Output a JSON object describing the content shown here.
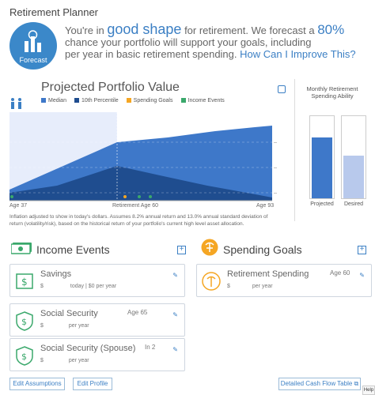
{
  "app": {
    "title": "Retirement Planner"
  },
  "forecast": {
    "badge_label": "Forecast",
    "line_start": "You're in",
    "status": "good shape",
    "line_mid": "for retirement. We forecast a",
    "percent": "80%",
    "line_end": "chance your portfolio will support your goals, including",
    "line_end2": "per year in basic retirement spending.",
    "improve_link": "How Can I Improve This?"
  },
  "chart": {
    "title": "Projected Portfolio Value",
    "legend": [
      {
        "label": "Median",
        "color": "#3e78c9"
      },
      {
        "label": "10th Percentile",
        "color": "#1f4d8f"
      },
      {
        "label": "Spending Goals",
        "color": "#f5a623"
      },
      {
        "label": "Income Events",
        "color": "#3aa86b"
      }
    ],
    "start_age": "Age 37",
    "retirement_age": "Retirement Age 60",
    "end_age": "Age 93",
    "disclaimer": "Inflation adjusted to show in today's dollars. Assumes 8.2% annual return and 13.0% annual standard deviation of return (volatility/risk), based on the historical return of your portfolio's current high level asset allocation."
  },
  "chart_data": {
    "type": "area",
    "title": "Projected Portfolio Value",
    "xlabel": "",
    "ylabel": "",
    "series": [
      {
        "name": "Median"
      },
      {
        "name": "10th Percentile"
      }
    ],
    "x_range": [
      "Age 37",
      "Age 93"
    ],
    "annotations": [
      "Retirement Age 60"
    ]
  },
  "side": {
    "title": "Monthly Retirement Spending Ability",
    "projected_label": "Projected",
    "desired_label": "Desired",
    "projected_level": 0.74,
    "desired_level": 0.52
  },
  "income": {
    "title": "Income Events",
    "items": [
      {
        "name": "Savings",
        "left": "$",
        "sub": "today | $0 per year",
        "right": ""
      },
      {
        "name": "Social Security",
        "left": "$",
        "sub": "per year",
        "right": "Age 65"
      },
      {
        "name": "Social Security (Spouse)",
        "left": "$",
        "sub": "per year",
        "right": "In 2"
      }
    ]
  },
  "spending": {
    "title": "Spending Goals",
    "items": [
      {
        "name": "Retirement Spending",
        "left": "$",
        "sub": "per year",
        "right": "Age 60"
      }
    ]
  },
  "buttons": {
    "edit_assumptions": "Edit Assumptions",
    "edit_profile": "Edit Profile",
    "cash_flow": "Detailed Cash Flow Table",
    "help": "Help"
  }
}
